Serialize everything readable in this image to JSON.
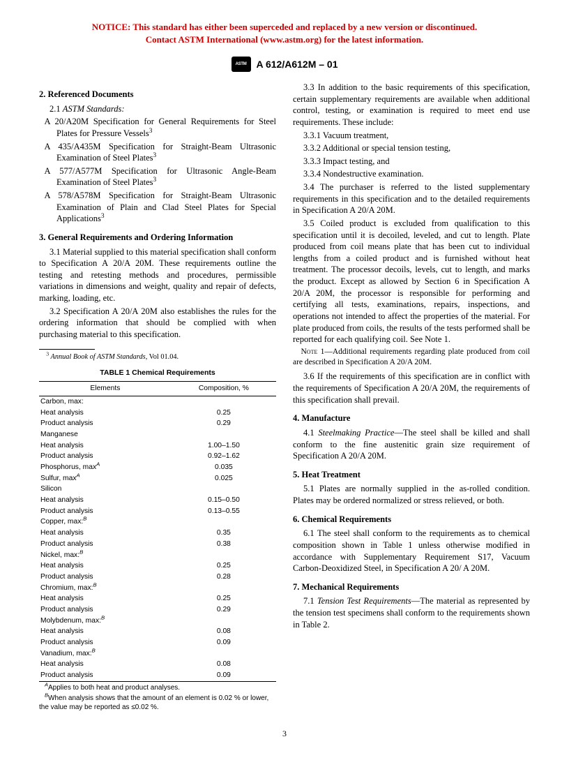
{
  "notice": {
    "line1": "NOTICE: This standard has either been superceded and replaced by a new version or discontinued.",
    "line2": "Contact ASTM International (www.astm.org) for the latest information."
  },
  "designation": "A 612/A612M – 01",
  "sections": {
    "s2": {
      "heading": "2.  Referenced Documents",
      "s21": "2.1 ",
      "s21_title": "ASTM Standards:",
      "refs": [
        "A 20/A20M Specification for General Requirements for Steel Plates for Pressure Vessels",
        "A 435/A435M Specification for Straight-Beam Ultrasonic Examination of Steel Plates",
        "A 577/A577M Specification for Ultrasonic Angle-Beam Examination of Steel Plates",
        "A 578/A578M Specification for Straight-Beam Ultrasonic Examination of Plain and Clad Steel Plates for Special Applications"
      ]
    },
    "s3": {
      "heading": "3.  General Requirements and Ordering Information",
      "p31": "3.1 Material supplied to this material specification shall conform to Specification A 20/A 20M. These requirements outline the testing and retesting methods and procedures, permissible variations in dimensions and weight, quality and repair of defects, marking, loading, etc.",
      "p32": "3.2 Specification A 20/A 20M also establishes the rules for the ordering information that should be complied with when purchasing material to this specification.",
      "p33": "3.3 In addition to the basic requirements of this specification, certain supplementary requirements are available when additional control, testing, or examination is required to meet end use requirements. These include:",
      "p331": "3.3.1 Vacuum treatment,",
      "p332": "3.3.2 Additional or special tension testing,",
      "p333": "3.3.3 Impact testing, and",
      "p334": "3.3.4 Nondestructive examination.",
      "p34": "3.4 The purchaser is referred to the listed supplementary requirements in this specification and to the detailed requirements in Specification A 20/A 20M.",
      "p35": "3.5 Coiled product is excluded from qualification to this specification until it is decoiled, leveled, and cut to length. Plate produced from coil means plate that has been cut to individual lengths from a coiled product and is furnished without heat treatment. The processor decoils, levels, cut to length, and marks the product. Except as allowed by Section 6 in Specification A 20/A 20M, the processor is responsible for performing and certifying all tests, examinations, repairs, inspections, and operations not intended to affect the properties of the material. For plate produced from coils, the results of the tests performed shall be reported for each qualifying coil. See Note 1.",
      "note1": "1—Additional requirements regarding plate produced from coil are described in Specification A 20/A 20M.",
      "p36": "3.6 If the requirements of this specification are in conflict with the requirements of Specification A 20/A 20M, the requirements of this specification shall prevail."
    },
    "s4": {
      "heading": "4.  Manufacture",
      "p41_lead": "4.1 ",
      "p41_title": "Steelmaking Practice",
      "p41_body": "—The steel shall be killed and shall conform to the fine austenitic grain size requirement of Specification A 20/A 20M."
    },
    "s5": {
      "heading": "5.  Heat Treatment",
      "p51": "5.1 Plates are normally supplied in the as-rolled condition. Plates may be ordered normalized or stress relieved, or both."
    },
    "s6": {
      "heading": "6.  Chemical Requirements",
      "p61": "6.1 The steel shall conform to the requirements as to chemical composition shown in Table 1 unless otherwise modified in accordance with Supplementary Requirement S17, Vacuum Carbon-Deoxidized Steel, in Specification A 20/ A 20M."
    },
    "s7": {
      "heading": "7.  Mechanical Requirements",
      "p71_lead": "7.1 ",
      "p71_title": "Tension Test Requirements",
      "p71_body": "—The material as represented by the tension test specimens shall conform to the requirements shown in Table 2."
    }
  },
  "footnote3_lead": "3",
  "footnote3_body_italic": " Annual Book of ASTM Standards",
  "footnote3_body_rest": ", Vol 01.04.",
  "table1": {
    "title": "TABLE 1  Chemical Requirements",
    "col1": "Elements",
    "col2": "Composition, %",
    "rows": [
      {
        "label": "Carbon, max:",
        "indent": 1,
        "val": ""
      },
      {
        "label": "Heat analysis",
        "indent": 2,
        "val": "0.25"
      },
      {
        "label": "Product analysis",
        "indent": 2,
        "val": "0.29"
      },
      {
        "label": "Manganese",
        "indent": 1,
        "val": ""
      },
      {
        "label": "Heat analysis",
        "indent": 2,
        "val": "1.00–1.50"
      },
      {
        "label": "Product analysis",
        "indent": 2,
        "val": "0.92–1.62"
      },
      {
        "label": "Phosphorus, max",
        "sup": "A",
        "indent": 1,
        "val": "0.035"
      },
      {
        "label": "Sulfur, max",
        "sup": "A",
        "indent": 1,
        "val": "0.025"
      },
      {
        "label": "Silicon",
        "indent": 1,
        "val": ""
      },
      {
        "label": "Heat analysis",
        "indent": 2,
        "val": "0.15–0.50"
      },
      {
        "label": "Product analysis",
        "indent": 2,
        "val": "0.13–0.55"
      },
      {
        "label": "Copper, max:",
        "sup": "B",
        "indent": 1,
        "val": ""
      },
      {
        "label": "Heat analysis",
        "indent": 2,
        "val": "0.35"
      },
      {
        "label": "Product analysis",
        "indent": 2,
        "val": "0.38"
      },
      {
        "label": "Nickel, max:",
        "sup": "B",
        "indent": 1,
        "val": ""
      },
      {
        "label": "Heat analysis",
        "indent": 2,
        "val": "0.25"
      },
      {
        "label": "Product analysis",
        "indent": 2,
        "val": "0.28"
      },
      {
        "label": "Chromium, max:",
        "sup": "B",
        "indent": 1,
        "val": ""
      },
      {
        "label": "Heat analysis",
        "indent": 2,
        "val": "0.25"
      },
      {
        "label": "Product analysis",
        "indent": 2,
        "val": "0.29"
      },
      {
        "label": "Molybdenum, max:",
        "sup": "B",
        "indent": 1,
        "val": ""
      },
      {
        "label": "Heat analysis",
        "indent": 2,
        "val": "0.08"
      },
      {
        "label": "Product analysis",
        "indent": 2,
        "val": "0.09"
      },
      {
        "label": "Vanadium, max:",
        "sup": "B",
        "indent": 1,
        "val": ""
      },
      {
        "label": "Heat analysis",
        "indent": 2,
        "val": "0.08"
      },
      {
        "label": "Product analysis",
        "indent": 2,
        "val": "0.09"
      }
    ],
    "noteA_sup": "A",
    "noteA": "Applies to both heat and product analyses.",
    "noteB_sup": "B",
    "noteB": "When analysis shows that the amount of an element is 0.02 % or lower, the value may be reported as ≤0.02 %."
  },
  "pageNumber": "3"
}
